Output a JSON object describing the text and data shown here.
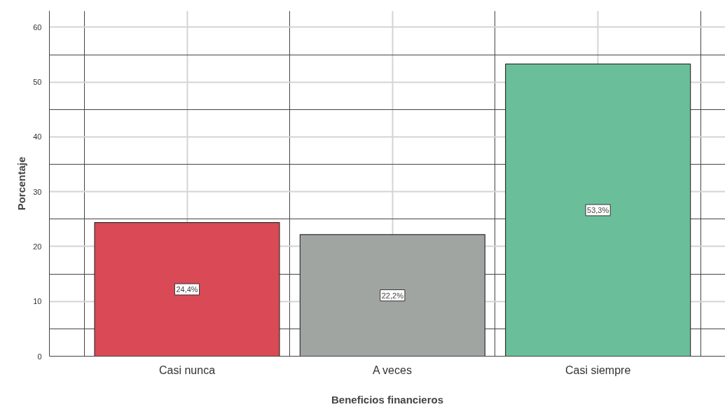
{
  "chart_data": {
    "type": "bar",
    "xlabel": "Beneficios financieros",
    "ylabel": "Porcentaje",
    "categories": [
      "Casi nunca",
      "A veces",
      "Casi siempre"
    ],
    "values": [
      24.4,
      22.2,
      53.3
    ],
    "colors": [
      "#d94a56",
      "#a1a5a2",
      "#6abf9a"
    ],
    "value_labels": [
      "24,4%",
      "22,2%",
      "53,3%"
    ],
    "ylim": [
      0,
      63
    ],
    "yticks": [
      0,
      10,
      20,
      30,
      40,
      50,
      60
    ],
    "grid": true
  }
}
